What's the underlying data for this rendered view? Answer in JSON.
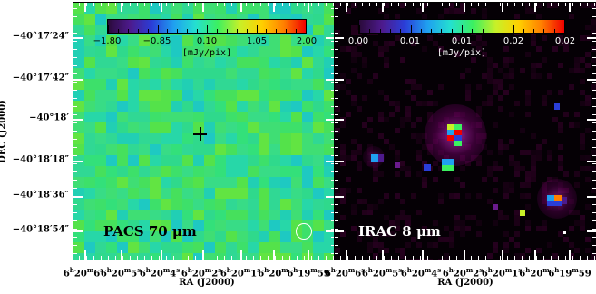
{
  "y_axis": {
    "label": "DEC (J2000)",
    "ticks": [
      "−40°17′24″",
      "−40°17′42″",
      "−40°18′",
      "−40°18′18″",
      "−40°18′36″",
      "−40°18′54″"
    ]
  },
  "x_axis": {
    "label": "RA (J2000)",
    "ticks": [
      "6h20m6s",
      "6h20m5s",
      "6h20m4s",
      "6h20m2s",
      "6h20m1s",
      "6h20m",
      "6h19m59"
    ]
  },
  "panels": [
    {
      "band_label": "PACS 70 μm",
      "colorbar_labels": [
        "−1.80",
        "−0.85",
        "0.10",
        "1.05",
        "2.00"
      ],
      "unit": "[mJy/pix]",
      "colormap": [
        "#2a0a3a",
        "#4d1a8c",
        "#2a3ed8",
        "#1fa0f0",
        "#24e0d0",
        "#3cf060",
        "#c8f028",
        "#ffd000",
        "#ff8000",
        "#f00000"
      ],
      "markers": [
        "cross-marker",
        "beam-circle"
      ]
    },
    {
      "band_label": "IRAC 8 μm",
      "colorbar_labels": [
        "0.00",
        "0.01",
        "0.01",
        "0.02",
        "0.02"
      ],
      "unit": "[mJy/pix]",
      "colormap": [
        "#2a0a3a",
        "#4d1a8c",
        "#2a3ed8",
        "#1fa0f0",
        "#24e0d0",
        "#3cf060",
        "#c8f028",
        "#ffd000",
        "#ff8000",
        "#f00000"
      ]
    }
  ]
}
